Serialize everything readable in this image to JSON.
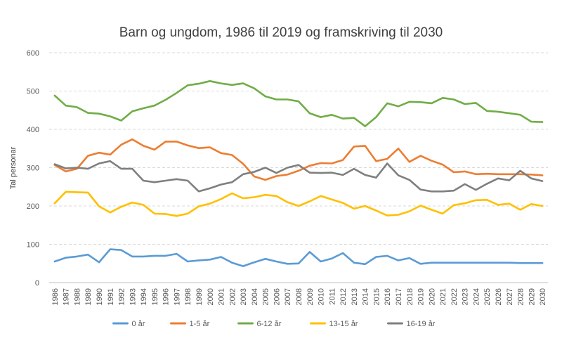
{
  "chart_data": {
    "type": "line",
    "title": "Barn og ungdom, 1986 til 2019 og framskriving til 2030",
    "xlabel": "",
    "ylabel": "Tal personar",
    "ylim": [
      0,
      600
    ],
    "yticks": [
      0,
      100,
      200,
      300,
      400,
      500,
      600
    ],
    "grid": true,
    "legend_position": "bottom",
    "categories": [
      "1986",
      "1987",
      "1988",
      "1989",
      "1990",
      "1991",
      "1992",
      "1993",
      "1994",
      "1995",
      "1996",
      "1997",
      "1998",
      "1999",
      "2000",
      "2001",
      "2002",
      "2003",
      "2004",
      "2005",
      "2006",
      "2007",
      "2008",
      "2009",
      "2010",
      "2011",
      "2012",
      "2013",
      "2014",
      "2015",
      "2016",
      "2017",
      "2018",
      "2019",
      "2020",
      "2021",
      "2022",
      "2023",
      "2024",
      "2025",
      "2026",
      "2027",
      "2028",
      "2029",
      "2030"
    ],
    "series": [
      {
        "name": "0 år",
        "color": "#5B9BD5",
        "values": [
          55,
          65,
          68,
          73,
          53,
          87,
          85,
          68,
          68,
          70,
          70,
          75,
          55,
          58,
          60,
          67,
          52,
          43,
          53,
          62,
          55,
          49,
          50,
          80,
          55,
          63,
          77,
          52,
          48,
          67,
          70,
          58,
          64,
          49,
          52,
          52,
          52,
          52,
          52,
          52,
          52,
          52,
          51,
          51,
          51
        ]
      },
      {
        "name": "1-5 år",
        "color": "#ED7D31",
        "values": [
          307,
          290,
          297,
          331,
          339,
          334,
          360,
          374,
          357,
          347,
          368,
          368,
          358,
          351,
          353,
          338,
          333,
          310,
          277,
          268,
          278,
          282,
          292,
          305,
          312,
          311,
          320,
          355,
          357,
          317,
          323,
          350,
          315,
          331,
          318,
          308,
          288,
          290,
          283,
          284,
          283,
          283,
          283,
          282,
          280
        ]
      },
      {
        "name": "6-12 år",
        "color": "#70AD47",
        "values": [
          488,
          462,
          458,
          443,
          441,
          434,
          423,
          447,
          455,
          462,
          477,
          495,
          515,
          519,
          526,
          520,
          516,
          520,
          507,
          486,
          478,
          478,
          473,
          442,
          432,
          438,
          428,
          430,
          408,
          432,
          468,
          460,
          472,
          471,
          468,
          482,
          478,
          466,
          469,
          448,
          446,
          442,
          438,
          420,
          419
        ]
      },
      {
        "name": "13-15 år",
        "color": "#FFC000",
        "values": [
          207,
          237,
          236,
          235,
          199,
          183,
          198,
          209,
          203,
          180,
          179,
          174,
          180,
          199,
          206,
          218,
          233,
          220,
          223,
          229,
          226,
          210,
          200,
          212,
          226,
          217,
          208,
          193,
          200,
          188,
          175,
          177,
          186,
          201,
          190,
          180,
          202,
          207,
          215,
          216,
          203,
          206,
          190,
          205,
          200
        ]
      },
      {
        "name": "16-19 år",
        "color": "#7F7F7F",
        "values": [
          309,
          298,
          300,
          297,
          311,
          317,
          297,
          297,
          266,
          262,
          266,
          270,
          266,
          238,
          246,
          256,
          262,
          283,
          289,
          300,
          286,
          300,
          307,
          287,
          286,
          287,
          281,
          297,
          281,
          274,
          311,
          280,
          268,
          243,
          238,
          238,
          240,
          257,
          242,
          258,
          272,
          267,
          292,
          272,
          265
        ]
      }
    ]
  }
}
